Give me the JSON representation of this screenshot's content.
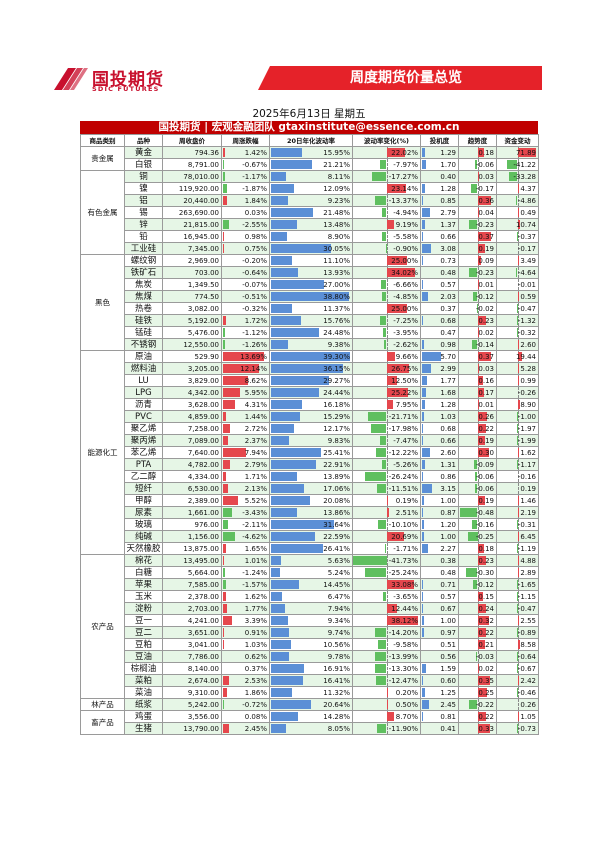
{
  "header": {
    "logo_cn": "国投期货",
    "logo_en": "SDIC FUTURES",
    "banner": "周度期货价量总览",
    "date": "2025年6月13日 星期五",
    "team": "国投期货 | 宏观金融团队 gtaxinstitute@essence.com.cn"
  },
  "colors": {
    "red": "#e5474d",
    "blue": "#5b8fd6",
    "green": "#5fbf5f",
    "stripe": "#e6f6e6",
    "brand": "#c8102e"
  },
  "scales": {
    "weekly": 15,
    "vol": 40,
    "volchg": 40,
    "ratio": 10,
    "trend": 0.5,
    "flow": 80
  },
  "columns": [
    "商品类别",
    "品种",
    "周收盘价",
    "周涨跌幅",
    "20日年化波动率",
    "波动率变化(%)",
    "投机度",
    "趋势度",
    "资金变动"
  ],
  "groups": [
    {
      "name": "贵金属",
      "rows": [
        [
          "黄金",
          "794.36",
          "1.42%",
          "15.95%",
          "22.02%",
          "1.29",
          "0.18",
          "71.89"
        ],
        [
          "白银",
          "8,791.00",
          "-0.67%",
          "21.21%",
          "-7.97%",
          "1.70",
          "-0.06",
          "-41.22"
        ]
      ]
    },
    {
      "name": "有色金属",
      "rows": [
        [
          "铜",
          "78,010.00",
          "-1.17%",
          "8.11%",
          "-17.27%",
          "0.40",
          "0.03",
          "-33.28"
        ],
        [
          "镍",
          "119,920.00",
          "-1.87%",
          "12.09%",
          "23.14%",
          "1.28",
          "-0.17",
          "4.37"
        ],
        [
          "铝",
          "20,440.00",
          "1.84%",
          "9.23%",
          "-13.37%",
          "0.85",
          "0.36",
          "-4.86"
        ],
        [
          "锡",
          "263,690.00",
          "0.03%",
          "21.48%",
          "-4.94%",
          "2.79",
          "0.04",
          "0.49"
        ],
        [
          "锌",
          "21,815.00",
          "-2.55%",
          "13.48%",
          "9.19%",
          "1.37",
          "-0.23",
          "10.74"
        ],
        [
          "铅",
          "16,945.00",
          "0.98%",
          "8.90%",
          "-5.58%",
          "0.66",
          "0.37",
          "-0.37"
        ],
        [
          "工业硅",
          "7,345.00",
          "0.75%",
          "30.05%",
          "-0.90%",
          "3.08",
          "0.19",
          "-0.17"
        ]
      ]
    },
    {
      "name": "黑色",
      "rows": [
        [
          "螺纹钢",
          "2,969.00",
          "-0.20%",
          "11.10%",
          "25.00%",
          "0.73",
          "0.09",
          "3.49"
        ],
        [
          "铁矿石",
          "703.00",
          "-0.64%",
          "13.93%",
          "34.02%",
          "0.48",
          "-0.23",
          "-4.64"
        ],
        [
          "焦炭",
          "1,349.50",
          "-0.07%",
          "27.00%",
          "-6.66%",
          "0.57",
          "0.01",
          "-0.01"
        ],
        [
          "焦煤",
          "774.50",
          "-0.51%",
          "38.80%",
          "-4.85%",
          "2.03",
          "-0.12",
          "0.59"
        ],
        [
          "热卷",
          "3,082.00",
          "-0.32%",
          "11.37%",
          "25.00%",
          "0.37",
          "-0.02",
          "-0.47"
        ],
        [
          "硅铁",
          "5,192.00",
          "1.72%",
          "15.76%",
          "-7.25%",
          "0.68",
          "0.23",
          "-1.32"
        ],
        [
          "锰硅",
          "5,476.00",
          "-1.12%",
          "24.48%",
          "-3.95%",
          "0.47",
          "0.02",
          "-0.32"
        ],
        [
          "不锈钢",
          "12,550.00",
          "-1.26%",
          "9.38%",
          "-2.62%",
          "0.98",
          "-0.14",
          "2.60"
        ]
      ]
    },
    {
      "name": "能源化工",
      "rows": [
        [
          "原油",
          "529.90",
          "13.69%",
          "39.30%",
          "9.66%",
          "5.70",
          "0.37",
          "19.44"
        ],
        [
          "燃料油",
          "3,205.00",
          "12.14%",
          "36.15%",
          "26.75%",
          "2.99",
          "0.03",
          "5.28"
        ],
        [
          "LU",
          "3,829.00",
          "8.62%",
          "29.27%",
          "12.50%",
          "1.77",
          "0.16",
          "0.99"
        ],
        [
          "LPG",
          "4,342.00",
          "5.95%",
          "24.44%",
          "25.22%",
          "1.68",
          "0.17",
          "-0.26"
        ],
        [
          "沥青",
          "3,628.00",
          "4.31%",
          "16.18%",
          "7.95%",
          "1.28",
          "0.01",
          "8.90"
        ],
        [
          "PVC",
          "4,859.00",
          "1.44%",
          "15.29%",
          "-21.71%",
          "1.03",
          "0.26",
          "-1.00"
        ],
        [
          "聚乙烯",
          "7,258.00",
          "2.72%",
          "12.17%",
          "-17.98%",
          "0.68",
          "0.22",
          "-1.97"
        ],
        [
          "聚丙烯",
          "7,089.00",
          "2.37%",
          "9.83%",
          "-7.47%",
          "0.66",
          "0.19",
          "-1.99"
        ],
        [
          "苯乙烯",
          "7,640.00",
          "7.94%",
          "25.41%",
          "-12.22%",
          "2.60",
          "0.30",
          "1.62"
        ],
        [
          "PTA",
          "4,782.00",
          "2.79%",
          "22.91%",
          "-5.26%",
          "1.31",
          "-0.09",
          "-1.17"
        ],
        [
          "乙二醇",
          "4,334.00",
          "1.71%",
          "13.89%",
          "-26.24%",
          "0.86",
          "-0.06",
          "-0.16"
        ],
        [
          "短纤",
          "6,530.00",
          "2.13%",
          "17.06%",
          "-11.51%",
          "3.15",
          "-0.06",
          "0.19"
        ],
        [
          "甲醇",
          "2,389.00",
          "5.52%",
          "20.08%",
          "0.19%",
          "1.00",
          "0.19",
          "1.46"
        ],
        [
          "尿素",
          "1,661.00",
          "-3.43%",
          "13.86%",
          "2.51%",
          "0.87",
          "-0.48",
          "2.19"
        ],
        [
          "玻璃",
          "976.00",
          "-2.11%",
          "31.64%",
          "-10.10%",
          "1.20",
          "-0.16",
          "-0.31"
        ],
        [
          "纯碱",
          "1,156.00",
          "-4.62%",
          "22.59%",
          "20.69%",
          "1.00",
          "-0.25",
          "6.45"
        ],
        [
          "天然橡胶",
          "13,875.00",
          "1.65%",
          "26.41%",
          "-1.71%",
          "2.27",
          "0.18",
          "-1.19"
        ]
      ]
    },
    {
      "name": "农产品",
      "rows": [
        [
          "棉花",
          "13,495.00",
          "1.01%",
          "5.63%",
          "-41.73%",
          "0.38",
          "0.23",
          "4.88"
        ],
        [
          "白糖",
          "5,664.00",
          "-1.24%",
          "5.24%",
          "-25.24%",
          "0.48",
          "-0.30",
          "2.89"
        ],
        [
          "苹果",
          "7,585.00",
          "-1.57%",
          "14.45%",
          "33.08%",
          "0.71",
          "-0.12",
          "-1.65"
        ],
        [
          "玉米",
          "2,378.00",
          "1.62%",
          "6.47%",
          "-3.65%",
          "0.57",
          "0.15",
          "-1.15"
        ],
        [
          "淀粉",
          "2,703.00",
          "1.77%",
          "7.94%",
          "12.44%",
          "0.67",
          "0.24",
          "-0.47"
        ],
        [
          "豆一",
          "4,241.00",
          "3.39%",
          "9.34%",
          "38.12%",
          "1.00",
          "0.32",
          "2.55"
        ],
        [
          "豆二",
          "3,651.00",
          "0.91%",
          "9.74%",
          "-14.20%",
          "0.97",
          "0.22",
          "-0.89"
        ],
        [
          "豆粕",
          "3,041.00",
          "1.03%",
          "10.56%",
          "-9.58%",
          "0.51",
          "0.21",
          "8.58"
        ],
        [
          "豆油",
          "7,786.00",
          "0.62%",
          "9.78%",
          "-13.99%",
          "0.56",
          "-0.03",
          "-0.64"
        ],
        [
          "棕榈油",
          "8,140.00",
          "0.37%",
          "16.91%",
          "-13.30%",
          "1.59",
          "0.02",
          "-0.67"
        ],
        [
          "菜粕",
          "2,674.00",
          "2.53%",
          "16.41%",
          "-12.47%",
          "0.60",
          "0.35",
          "2.42"
        ],
        [
          "菜油",
          "9,310.00",
          "1.86%",
          "11.32%",
          "0.20%",
          "1.25",
          "0.25",
          "-0.46"
        ]
      ]
    },
    {
      "name": "林产品",
      "rows": [
        [
          "纸浆",
          "5,242.00",
          "-0.72%",
          "20.64%",
          "0.50%",
          "2.45",
          "-0.22",
          "0.26"
        ]
      ]
    },
    {
      "name": "畜产品",
      "rows": [
        [
          "鸡蛋",
          "3,556.00",
          "0.08%",
          "14.28%",
          "8.70%",
          "0.81",
          "0.22",
          "1.05"
        ],
        [
          "生猪",
          "13,790.00",
          "2.45%",
          "8.05%",
          "-11.90%",
          "0.41",
          "0.33",
          "-0.73"
        ]
      ]
    }
  ]
}
